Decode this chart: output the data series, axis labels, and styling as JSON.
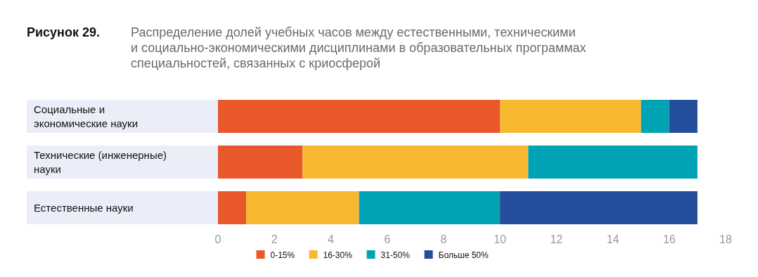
{
  "chart_data": {
    "type": "bar",
    "orientation": "horizontal",
    "stacked": true,
    "title": "Рисунок 29.",
    "subtitle": "Распределение долей учебных часов между естественными, техническими и социально-экономическими дисциплинами в образовательных программах специальностей, связанных с криосферой",
    "categories": [
      "Социальные и экономические науки",
      "Технические (инженерные) науки",
      "Естественные науки"
    ],
    "series": [
      {
        "name": "0-15%",
        "color": "#e8582a",
        "values": [
          10,
          3,
          1
        ]
      },
      {
        "name": "16-30%",
        "color": "#f9b832",
        "values": [
          5,
          8,
          4
        ]
      },
      {
        "name": "31-50%",
        "color": "#00a3b4",
        "values": [
          1,
          6,
          5
        ]
      },
      {
        "name": "Больше 50%",
        "color": "#244d9c",
        "values": [
          1,
          0,
          7
        ]
      }
    ],
    "xlim": [
      0,
      18
    ],
    "xticks": [
      0,
      2,
      4,
      6,
      8,
      10,
      12,
      14,
      16,
      18
    ],
    "grid": false,
    "legend": "bottom"
  }
}
